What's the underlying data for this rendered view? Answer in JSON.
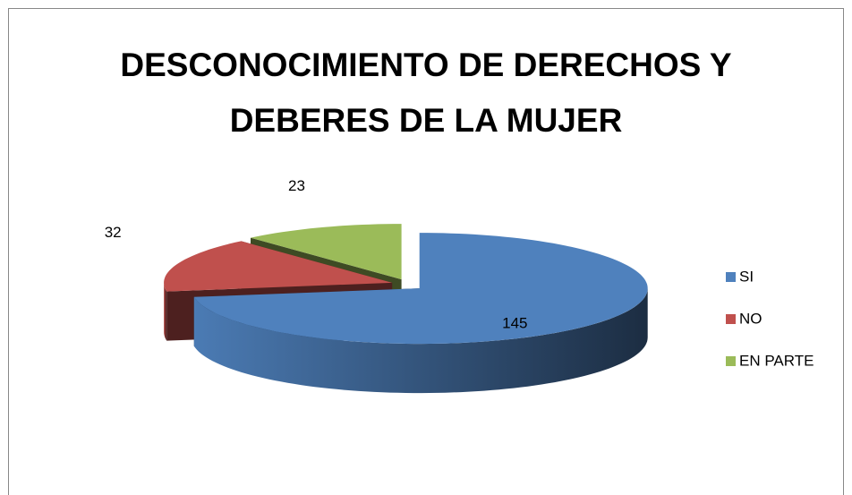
{
  "chart_data": {
    "type": "pie3d",
    "title": "DESCONOCIMIENTO DE DERECHOS Y DEBERES DE LA MUJER",
    "categories": [
      "SI",
      "NO",
      "EN PARTE"
    ],
    "values": [
      145,
      32,
      23
    ],
    "colors": [
      "#4f81bd",
      "#c0504d",
      "#9bbb59"
    ],
    "legend": "right"
  }
}
